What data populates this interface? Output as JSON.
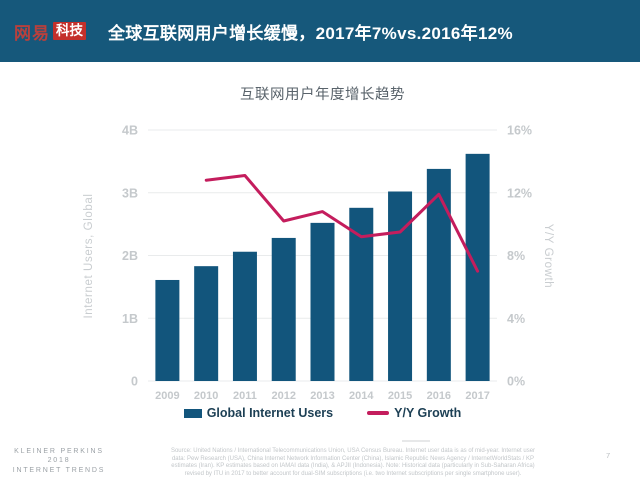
{
  "header": {
    "logo_name": "网易",
    "logo_badge": "科技",
    "title": "全球互联网用户增长缓慢，2017年7%vs.2016年12%"
  },
  "chart_data": {
    "type": "bar",
    "combo": "bar+line",
    "title": "互联网用户年度增长趋势",
    "categories": [
      "2009",
      "2010",
      "2011",
      "2012",
      "2013",
      "2014",
      "2015",
      "2016",
      "2017"
    ],
    "series": [
      {
        "name": "Global Internet Users",
        "type": "bar",
        "axis": "left",
        "unit": "billions",
        "color": "#12557C",
        "values": [
          1.61,
          1.83,
          2.06,
          2.28,
          2.52,
          2.76,
          3.02,
          3.38,
          3.62
        ]
      },
      {
        "name": "Y/Y Growth",
        "type": "line",
        "axis": "right",
        "unit": "%",
        "color": "#C41D5D",
        "values": [
          null,
          12.8,
          13.1,
          10.2,
          10.8,
          9.2,
          9.5,
          11.9,
          7.0
        ]
      }
    ],
    "left_axis": {
      "title": "Internet Users, Global",
      "ticks": [
        "4B",
        "3B",
        "2B",
        "1B",
        "0"
      ],
      "range": [
        0,
        4
      ]
    },
    "right_axis": {
      "title": "Y/Y Growth",
      "ticks": [
        "16%",
        "12%",
        "8%",
        "4%",
        "0%"
      ],
      "range": [
        0,
        16
      ]
    },
    "grid": true,
    "legend_position": "bottom"
  },
  "footer": {
    "brand_line1": "KLEINER PERKINS",
    "brand_line2": "2018",
    "brand_line3": "INTERNET TRENDS",
    "source_lines": [
      "Source: United Nations / International Telecommunications Union, USA Census Bureau. Internet user data is as of mid-year. Internet user",
      "data: Pew Research (USA), China Internet Network Information Center (China), Islamic Republic News Agency / InternetWorldStats / KP",
      "estimates (Iran). KP estimates based on IAMAI data (India), & APJII (Indonesia). Note: Historical data (particularly in Sub-Saharan Africa)",
      "revised by ITU in 2017 to better account for dual-SIM subscriptions (i.e. two Internet subscriptions per single smartphone user)."
    ],
    "page_number": "7"
  }
}
